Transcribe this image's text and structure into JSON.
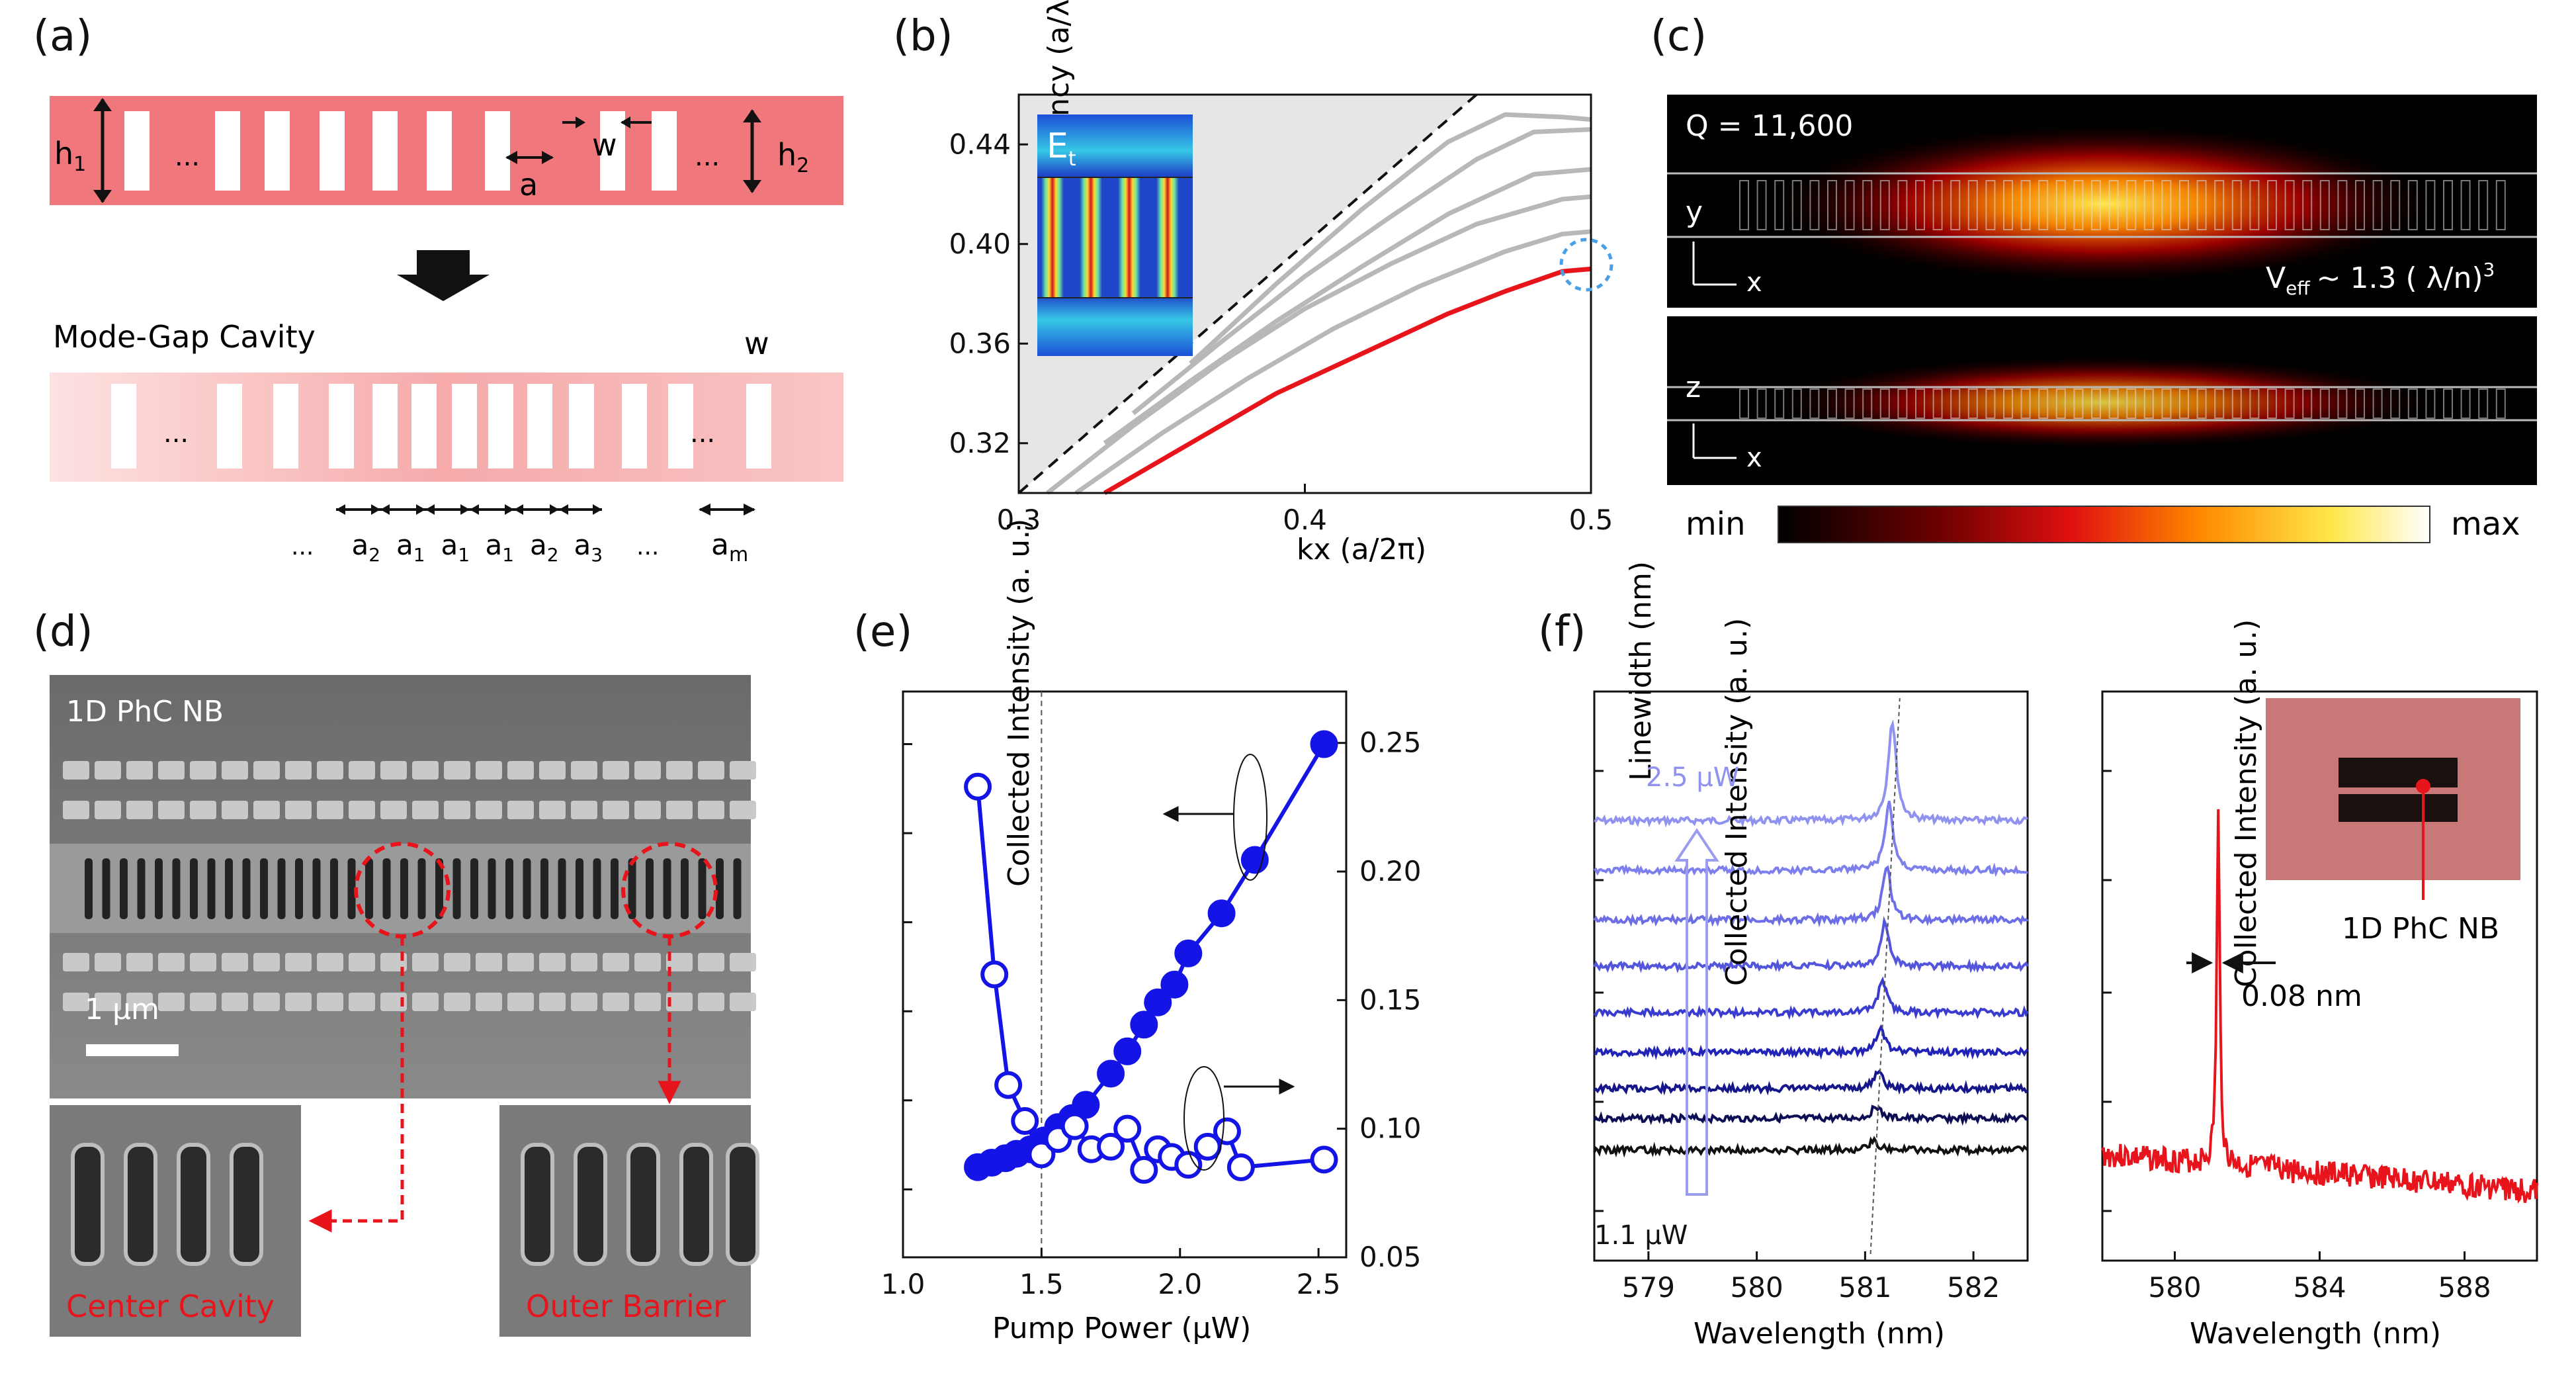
{
  "panels": {
    "a": {
      "label": "(a)",
      "dots": "...",
      "h1": "h",
      "h1_sub": "1",
      "h2": "h",
      "h2_sub": "2",
      "a_label": "a",
      "w_label": "w",
      "cavity_title": "Mode-Gap Cavity",
      "w2_label": "w",
      "lattice": [
        {
          "main": "a",
          "sub": "2"
        },
        {
          "main": "a",
          "sub": "1"
        },
        {
          "main": "a",
          "sub": "1"
        },
        {
          "main": "a",
          "sub": "1"
        },
        {
          "main": "a",
          "sub": "2"
        },
        {
          "main": "a",
          "sub": "3"
        }
      ],
      "am": "a",
      "am_sub": "m"
    },
    "b": {
      "label": "(b)",
      "inset_title": "E",
      "inset_sub": "t",
      "xlabel": "kx (a/2π)",
      "ylabel": "Frequency (a/λ)",
      "xticks": [
        "0.3",
        "0.4",
        "0.5"
      ],
      "yticks": [
        "0.32",
        "0.36",
        "0.40",
        "0.44"
      ]
    },
    "c": {
      "label": "(c)",
      "q_text": "Q = 11,600",
      "veff_main": "V",
      "veff_sub": "eff",
      "veff_rest": "~ 1.3 ( λ/n)",
      "veff_sup": "3",
      "axis_y": "y",
      "axis_z": "z",
      "axis_x": "x",
      "colorbar_min": "min",
      "colorbar_max": "max"
    },
    "d": {
      "label": "(d)",
      "title": "1D PhC NB",
      "scale": "1 μm",
      "center": "Center Cavity",
      "outer": "Outer Barrier"
    },
    "e": {
      "label": "(e)",
      "xlabel": "Pump Power (μW)",
      "ylabel_left": "Collected Intensity (a. u.)",
      "ylabel_right": "Linewidth (nm)",
      "xticks": [
        "1.0",
        "1.5",
        "2.0",
        "2.5"
      ],
      "yticks_right": [
        "0.05",
        "0.10",
        "0.15",
        "0.20",
        "0.25"
      ]
    },
    "f": {
      "label": "(f)",
      "left_ylabel": "Collected Intensity (a. u.)",
      "left_xlabel": "Wavelength (nm)",
      "left_xticks": [
        "579",
        "580",
        "581",
        "582"
      ],
      "top_power": "2.5 μW",
      "bottom_power": "1.1 μW",
      "right_ylabel": "Collected Intensity (a. u.)",
      "right_xlabel": "Wavelength (nm)",
      "right_xticks": [
        "580",
        "584",
        "588"
      ],
      "linewidth_text": "0.08 nm",
      "inset_label": "1D PhC NB"
    }
  },
  "chart_data": [
    {
      "type": "line",
      "title": "",
      "xlabel": "kx (a/2π)",
      "ylabel": "Frequency (a/λ)",
      "xlim": [
        0.3,
        0.5
      ],
      "ylim": [
        0.3,
        0.46
      ],
      "series": [
        {
          "name": "light line",
          "style": "dashed",
          "x": [
            0.3,
            0.46
          ],
          "y": [
            0.3,
            0.46
          ]
        },
        {
          "name": "band 1",
          "color": "#e8141c",
          "x": [
            0.33,
            0.36,
            0.39,
            0.42,
            0.45,
            0.47,
            0.49,
            0.5
          ],
          "y": [
            0.3,
            0.32,
            0.34,
            0.356,
            0.372,
            0.381,
            0.389,
            0.39
          ]
        },
        {
          "name": "band 2",
          "color": "#b8b8b8",
          "x": [
            0.32,
            0.35,
            0.38,
            0.41,
            0.44,
            0.47,
            0.49,
            0.5
          ],
          "y": [
            0.3,
            0.324,
            0.346,
            0.366,
            0.383,
            0.397,
            0.404,
            0.405
          ]
        },
        {
          "name": "band 3",
          "color": "#b8b8b8",
          "x": [
            0.31,
            0.34,
            0.37,
            0.4,
            0.43,
            0.46,
            0.49,
            0.5
          ],
          "y": [
            0.3,
            0.327,
            0.352,
            0.374,
            0.392,
            0.408,
            0.418,
            0.419
          ]
        },
        {
          "name": "band 4",
          "color": "#b8b8b8",
          "x": [
            0.33,
            0.36,
            0.39,
            0.42,
            0.45,
            0.48,
            0.5
          ],
          "y": [
            0.32,
            0.345,
            0.369,
            0.391,
            0.412,
            0.428,
            0.43
          ]
        },
        {
          "name": "band 5",
          "color": "#b8b8b8",
          "x": [
            0.34,
            0.37,
            0.4,
            0.43,
            0.46,
            0.48,
            0.5
          ],
          "y": [
            0.332,
            0.36,
            0.387,
            0.411,
            0.434,
            0.445,
            0.446
          ]
        },
        {
          "name": "band 6",
          "color": "#b8b8b8",
          "x": [
            0.36,
            0.39,
            0.42,
            0.45,
            0.47,
            0.49,
            0.5
          ],
          "y": [
            0.352,
            0.384,
            0.414,
            0.441,
            0.452,
            0.451,
            0.45
          ]
        }
      ]
    },
    {
      "type": "scatter",
      "xlabel": "Pump Power (μW)",
      "ylabel": "Collected Intensity (a. u.)",
      "ylabel_right": "Linewidth (nm)",
      "xlim": [
        1.0,
        2.6
      ],
      "ylim_right": [
        0.05,
        0.27
      ],
      "ylim_left": [
        0,
        1.08
      ],
      "threshold_x": 1.5,
      "series": [
        {
          "name": "Collected Intensity",
          "axis": "left",
          "marker": "filled",
          "x": [
            1.27,
            1.32,
            1.37,
            1.41,
            1.46,
            1.51,
            1.56,
            1.61,
            1.66,
            1.75,
            1.81,
            1.87,
            1.92,
            1.98,
            2.03,
            2.15,
            2.27,
            2.52
          ],
          "y": [
            0.05,
            0.06,
            0.07,
            0.08,
            0.09,
            0.11,
            0.14,
            0.16,
            0.19,
            0.26,
            0.31,
            0.37,
            0.42,
            0.46,
            0.53,
            0.62,
            0.74,
            1.0
          ]
        },
        {
          "name": "Linewidth",
          "axis": "right",
          "marker": "open",
          "x": [
            1.27,
            1.33,
            1.38,
            1.44,
            1.5,
            1.56,
            1.62,
            1.68,
            1.75,
            1.81,
            1.87,
            1.92,
            1.97,
            2.03,
            2.1,
            2.17,
            2.22,
            2.52
          ],
          "y": [
            0.233,
            0.16,
            0.117,
            0.103,
            0.09,
            0.096,
            0.101,
            0.092,
            0.093,
            0.1,
            0.084,
            0.092,
            0.089,
            0.086,
            0.093,
            0.099,
            0.085,
            0.088
          ]
        }
      ]
    },
    {
      "type": "line",
      "xlabel": "Wavelength (nm)",
      "ylabel": "Collected Intensity (a. u.)",
      "xlim": [
        578.5,
        582.5
      ],
      "series": [
        {
          "name": "2.5 μW",
          "color": "#8f92ee",
          "peak_x": 581.25,
          "peak_height": 1.0
        },
        {
          "name": "spectrum 7",
          "color": "#7d80ec",
          "peak_x": 581.22,
          "peak_height": 0.72
        },
        {
          "name": "spectrum 6",
          "color": "#6c6ee6",
          "peak_x": 581.2,
          "peak_height": 0.55
        },
        {
          "name": "spectrum 5",
          "color": "#5356dc",
          "peak_x": 581.18,
          "peak_height": 0.42
        },
        {
          "name": "spectrum 4",
          "color": "#3a3cd0",
          "peak_x": 581.16,
          "peak_height": 0.3
        },
        {
          "name": "spectrum 3",
          "color": "#2224b8",
          "peak_x": 581.14,
          "peak_height": 0.22
        },
        {
          "name": "spectrum 2",
          "color": "#15168a",
          "peak_x": 581.12,
          "peak_height": 0.15
        },
        {
          "name": "spectrum 1",
          "color": "#0d0d55",
          "peak_x": 581.1,
          "peak_height": 0.1
        },
        {
          "name": "1.1 μW",
          "color": "#111111",
          "peak_x": 581.08,
          "peak_height": 0.07
        }
      ]
    },
    {
      "type": "line",
      "xlabel": "Wavelength (nm)",
      "ylabel": "Collected Intensity (a. u.)",
      "xlim": [
        578,
        590
      ],
      "series": [
        {
          "name": "spectrum",
          "color": "#e8141c",
          "peak_x": 581.2,
          "fwhm_nm": 0.08
        }
      ]
    }
  ]
}
